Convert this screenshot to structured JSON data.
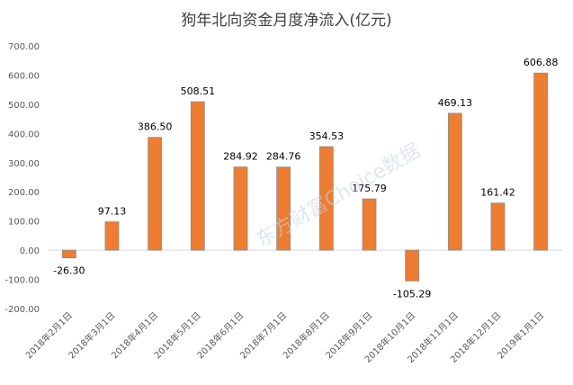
{
  "chart_data": {
    "type": "bar",
    "title": "狗年北向资金月度净流入(亿元)",
    "categories": [
      "2018年2月1日",
      "2018年3月1日",
      "2018年4月1日",
      "2018年5月1日",
      "2018年6月1日",
      "2018年7月1日",
      "2018年8月1日",
      "2018年9月1日",
      "2018年10月1日",
      "2018年11月1日",
      "2018年12月1日",
      "2019年1月1日"
    ],
    "values": [
      -26.3,
      97.13,
      386.5,
      508.51,
      284.92,
      284.76,
      354.53,
      175.79,
      -105.29,
      469.13,
      161.42,
      606.88
    ],
    "data_labels": [
      "-26.30",
      "97.13",
      "386.50",
      "508.51",
      "284.92",
      "284.76",
      "354.53",
      "175.79",
      "-105.29",
      "469.13",
      "161.42",
      "606.88"
    ],
    "y_ticks": [
      "-200.00",
      "-100.00",
      "0.00",
      "100.00",
      "200.00",
      "300.00",
      "400.00",
      "500.00",
      "600.00",
      "700.00"
    ],
    "ylim": [
      -200,
      700
    ],
    "grid": false,
    "legend": "none",
    "bar_color": "#ED7D31",
    "bar_edge_color": "#8c8c8c",
    "watermark": "东方财富Choice数据"
  }
}
